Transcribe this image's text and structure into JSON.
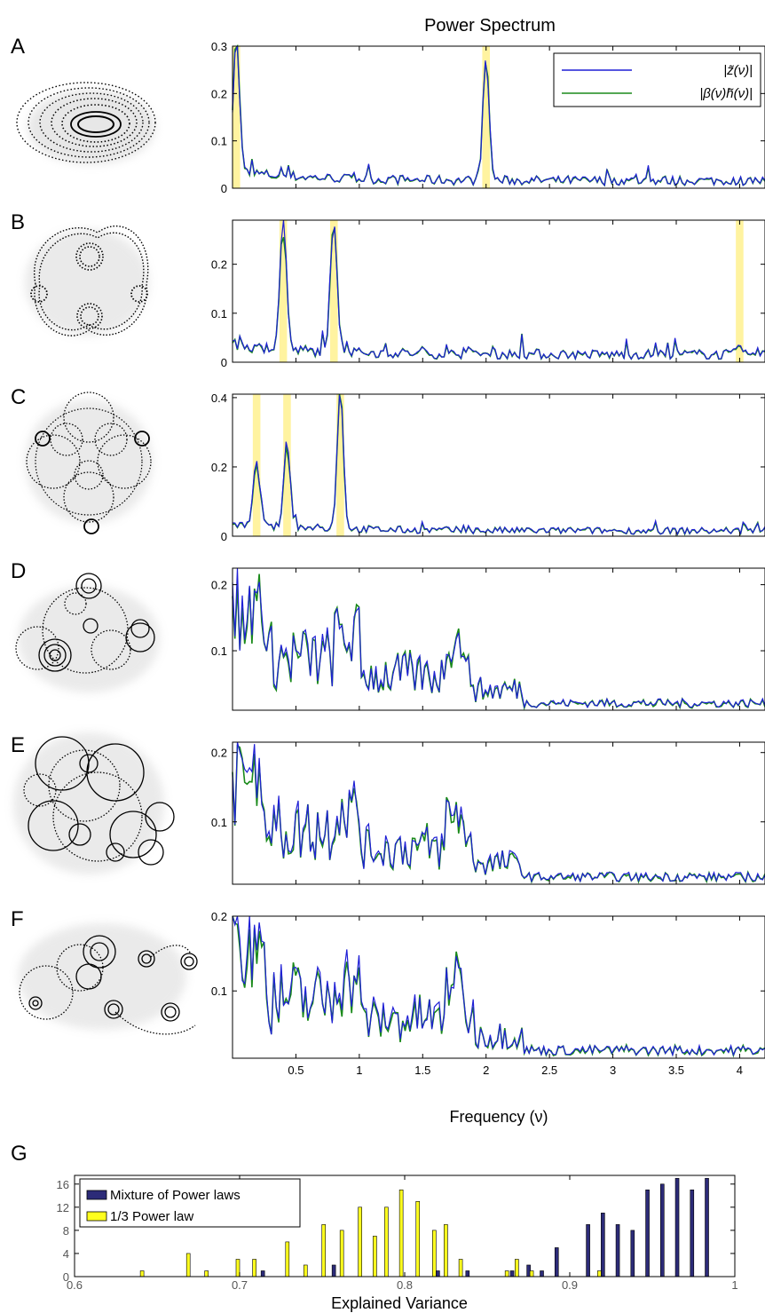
{
  "figure": {
    "title": "Power Spectrum",
    "spectrum_xlabel": "Frequency (ν)",
    "hist_xlabel": "Explained Variance"
  },
  "colors": {
    "z_line": "#1f1fd6",
    "h_line": "#1a8a1a",
    "highlight": "#fff3a0",
    "mixture_bar": "#2c2b78",
    "one_third_bar": "#ffff1e"
  },
  "legend_spectrum": {
    "z_label": "|z̃(ν)|",
    "h_label": "|β(ν)h̃(ν)|"
  },
  "chart_data": [
    {
      "panel": "A",
      "type": "line",
      "xlim": [
        0,
        4.2
      ],
      "ylim": [
        0,
        0.3
      ],
      "yticks": [
        0,
        0.1,
        0.2,
        0.3
      ],
      "yticklabels": [
        "0",
        "0.1",
        "0.2",
        "0.3"
      ],
      "highlight_bands": [
        [
          0.0,
          0.06
        ],
        [
          1.97,
          2.03
        ]
      ],
      "peaks": [
        {
          "x": 0.03,
          "y": 0.29
        },
        {
          "x": 2.0,
          "y": 0.26
        }
      ],
      "series": [
        {
          "name": "|z̃(ν)|"
        },
        {
          "name": "|β(ν)h̃(ν)|"
        }
      ]
    },
    {
      "panel": "B",
      "type": "line",
      "xlim": [
        0,
        4.2
      ],
      "ylim": [
        0,
        0.29
      ],
      "yticks": [
        0,
        0.1,
        0.2
      ],
      "yticklabels": [
        "0",
        "0.1",
        "0.2"
      ],
      "highlight_bands": [
        [
          0.37,
          0.43
        ],
        [
          0.77,
          0.83
        ],
        [
          3.97,
          4.03
        ]
      ],
      "peaks": [
        {
          "x": 0.4,
          "y": 0.29
        },
        {
          "x": 0.8,
          "y": 0.28
        },
        {
          "x": 4.0,
          "y": 0.02
        }
      ],
      "series": [
        {
          "name": "|z̃(ν)|"
        },
        {
          "name": "|β(ν)h̃(ν)|"
        }
      ]
    },
    {
      "panel": "C",
      "type": "line",
      "xlim": [
        0,
        4.2
      ],
      "ylim": [
        0,
        0.41
      ],
      "yticks": [
        0,
        0.2,
        0.4
      ],
      "yticklabels": [
        "0",
        "0.2",
        "0.4"
      ],
      "highlight_bands": [
        [
          0.16,
          0.22
        ],
        [
          0.4,
          0.46
        ],
        [
          0.82,
          0.88
        ]
      ],
      "peaks": [
        {
          "x": 0.19,
          "y": 0.2
        },
        {
          "x": 0.43,
          "y": 0.26
        },
        {
          "x": 0.85,
          "y": 0.41
        }
      ],
      "series": [
        {
          "name": "|z̃(ν)|"
        },
        {
          "name": "|β(ν)h̃(ν)|"
        }
      ]
    },
    {
      "panel": "D",
      "type": "line",
      "xlim": [
        0,
        4.2
      ],
      "ylim": [
        0.01,
        0.225
      ],
      "yticks": [
        0.1,
        0.2
      ],
      "yticklabels": [
        "0.1",
        "0.2"
      ],
      "highlight_bands": [],
      "series": [
        {
          "name": "|z̃(ν)|"
        },
        {
          "name": "|β(ν)h̃(ν)|"
        }
      ]
    },
    {
      "panel": "E",
      "type": "line",
      "xlim": [
        0,
        4.2
      ],
      "ylim": [
        0.01,
        0.215
      ],
      "yticks": [
        0.1,
        0.2
      ],
      "yticklabels": [
        "0.1",
        "0.2"
      ],
      "highlight_bands": [],
      "series": [
        {
          "name": "|z̃(ν)|"
        },
        {
          "name": "|β(ν)h̃(ν)|"
        }
      ]
    },
    {
      "panel": "F",
      "type": "line",
      "xlim": [
        0,
        4.2
      ],
      "ylim": [
        0.01,
        0.2
      ],
      "yticks": [
        0.1,
        0.2
      ],
      "yticklabels": [
        "0.1",
        "0.2"
      ],
      "xticks": [
        0.5,
        1,
        1.5,
        2,
        2.5,
        3,
        3.5,
        4
      ],
      "xticklabels": [
        "0.5",
        "1",
        "1.5",
        "2",
        "2.5",
        "3",
        "3.5",
        "4"
      ],
      "xlabel": "Frequency (ν)",
      "highlight_bands": [],
      "series": [
        {
          "name": "|z̃(ν)|"
        },
        {
          "name": "|β(ν)h̃(ν)|"
        }
      ]
    },
    {
      "panel": "G",
      "type": "bar",
      "xlabel": "Explained Variance",
      "xlim": [
        0.6,
        1.0
      ],
      "ylim": [
        0,
        17.5
      ],
      "xticks": [
        0.6,
        0.7,
        0.8,
        0.9,
        1.0
      ],
      "xticklabels": [
        "0.6",
        "0.7",
        "0.8",
        "0.9",
        "1"
      ],
      "yticks": [
        0,
        4,
        8,
        12,
        16
      ],
      "yticklabels": [
        "0",
        "4",
        "8",
        "12",
        "16"
      ],
      "legend": "top-left",
      "series": [
        {
          "name": "Mixture of Power laws",
          "x": [
            0.713,
            0.756,
            0.819,
            0.837,
            0.864,
            0.874,
            0.882,
            0.891,
            0.91,
            0.919,
            0.928,
            0.937,
            0.946,
            0.955,
            0.964,
            0.973,
            0.982
          ],
          "values": [
            1,
            2,
            1,
            1,
            1,
            2,
            1,
            5,
            9,
            11,
            9,
            8,
            15,
            16,
            17,
            15,
            17
          ]
        },
        {
          "name": "1/3 Power law",
          "x": [
            0.642,
            0.67,
            0.681,
            0.7,
            0.71,
            0.73,
            0.741,
            0.752,
            0.763,
            0.774,
            0.783,
            0.79,
            0.799,
            0.809,
            0.819,
            0.826,
            0.835,
            0.863,
            0.869,
            0.878,
            0.919
          ],
          "values": [
            1,
            4,
            1,
            3,
            3,
            6,
            2,
            9,
            8,
            12,
            7,
            12,
            15,
            13,
            8,
            9,
            3,
            1,
            3,
            1,
            1
          ]
        }
      ]
    }
  ],
  "panel_labels": [
    "A",
    "B",
    "C",
    "D",
    "E",
    "F",
    "G"
  ]
}
